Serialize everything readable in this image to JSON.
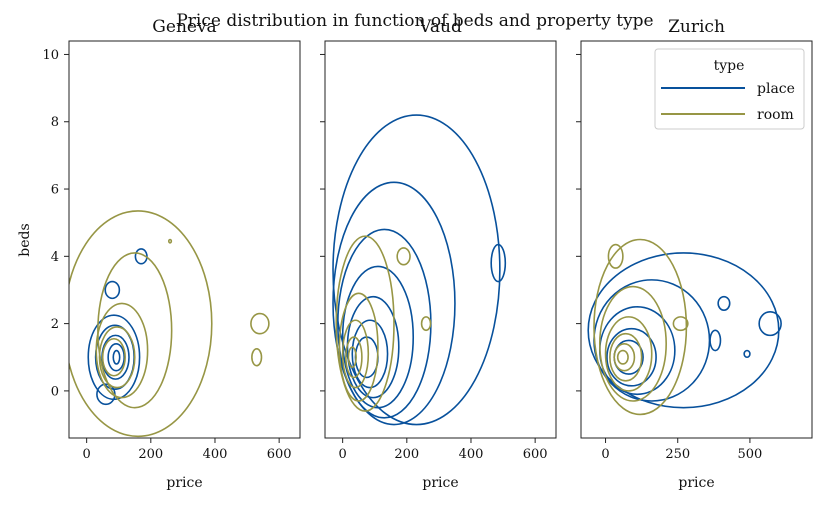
{
  "chart_data": {
    "type": "kde-contour",
    "title": "Price distribution in function of beds and property type",
    "ylabel": "beds",
    "shared_y": {
      "ylim": [
        -1.4,
        10.4
      ],
      "ticks": [
        0,
        2,
        4,
        6,
        8,
        10
      ]
    },
    "legend": {
      "title": "type",
      "placement": "top-right",
      "entries": [
        "place",
        "room"
      ]
    },
    "series_colors": {
      "place": "#08519c",
      "room": "#979645"
    },
    "panels": [
      {
        "title": "Geneva",
        "xlabel": "price",
        "xlim": [
          -55,
          665
        ],
        "xticks": [
          0,
          200,
          400,
          600
        ],
        "series": [
          {
            "name": "place",
            "contours": [
              {
                "cx": 85,
                "cy": 1.0,
                "rx": 80,
                "ry": 1.25
              },
              {
                "cx": 88,
                "cy": 1.0,
                "rx": 60,
                "ry": 0.95
              },
              {
                "cx": 90,
                "cy": 1.0,
                "rx": 42,
                "ry": 0.65
              },
              {
                "cx": 92,
                "cy": 1.0,
                "rx": 25,
                "ry": 0.4
              },
              {
                "cx": 93,
                "cy": 1.0,
                "rx": 10,
                "ry": 0.2
              },
              {
                "cx": 80,
                "cy": 3.0,
                "rx": 22,
                "ry": 0.25
              },
              {
                "cx": 170,
                "cy": 4.0,
                "rx": 18,
                "ry": 0.22
              },
              {
                "cx": 60,
                "cy": -0.1,
                "rx": 28,
                "ry": 0.3
              }
            ]
          },
          {
            "name": "room",
            "contours": [
              {
                "cx": 160,
                "cy": 2.0,
                "rx": 230,
                "ry": 3.35
              },
              {
                "cx": 150,
                "cy": 1.8,
                "rx": 115,
                "ry": 2.3
              },
              {
                "cx": 110,
                "cy": 1.2,
                "rx": 80,
                "ry": 1.4
              },
              {
                "cx": 95,
                "cy": 1.0,
                "rx": 55,
                "ry": 0.9
              },
              {
                "cx": 85,
                "cy": 1.0,
                "rx": 35,
                "ry": 0.55
              },
              {
                "cx": 540,
                "cy": 2.0,
                "rx": 28,
                "ry": 0.3
              },
              {
                "cx": 530,
                "cy": 1.0,
                "rx": 15,
                "ry": 0.25
              },
              {
                "cx": 260,
                "cy": 4.45,
                "rx": 4,
                "ry": 0.05
              }
            ]
          }
        ]
      },
      {
        "title": "Vaud",
        "xlabel": "price",
        "xlim": [
          -55,
          665
        ],
        "xticks": [
          0,
          200,
          400,
          600
        ],
        "series": [
          {
            "name": "place",
            "contours": [
              {
                "cx": 230,
                "cy": 3.6,
                "rx": 260,
                "ry": 4.6
              },
              {
                "cx": 160,
                "cy": 2.6,
                "rx": 190,
                "ry": 3.6
              },
              {
                "cx": 130,
                "cy": 2.0,
                "rx": 145,
                "ry": 2.8
              },
              {
                "cx": 110,
                "cy": 1.6,
                "rx": 110,
                "ry": 2.1
              },
              {
                "cx": 95,
                "cy": 1.3,
                "rx": 80,
                "ry": 1.5
              },
              {
                "cx": 85,
                "cy": 1.1,
                "rx": 55,
                "ry": 1.0
              },
              {
                "cx": 75,
                "cy": 1.0,
                "rx": 35,
                "ry": 0.6
              },
              {
                "cx": 485,
                "cy": 3.8,
                "rx": 22,
                "ry": 0.55
              }
            ]
          },
          {
            "name": "room",
            "contours": [
              {
                "cx": 70,
                "cy": 2.0,
                "rx": 90,
                "ry": 2.6
              },
              {
                "cx": 50,
                "cy": 1.3,
                "rx": 60,
                "ry": 1.6
              },
              {
                "cx": 40,
                "cy": 1.1,
                "rx": 40,
                "ry": 1.0
              },
              {
                "cx": 35,
                "cy": 1.0,
                "rx": 25,
                "ry": 0.6
              },
              {
                "cx": 30,
                "cy": 1.0,
                "rx": 12,
                "ry": 0.3
              },
              {
                "cx": 260,
                "cy": 2.0,
                "rx": 14,
                "ry": 0.2
              },
              {
                "cx": 190,
                "cy": 4.0,
                "rx": 20,
                "ry": 0.25
              }
            ]
          }
        ]
      },
      {
        "title": "Zurich",
        "xlabel": "price",
        "xlim": [
          -85,
          715
        ],
        "xticks": [
          0,
          250,
          500
        ],
        "series": [
          {
            "name": "place",
            "contours": [
              {
                "cx": 270,
                "cy": 1.8,
                "rx": 330,
                "ry": 2.3
              },
              {
                "cx": 160,
                "cy": 1.5,
                "rx": 200,
                "ry": 1.8
              },
              {
                "cx": 110,
                "cy": 1.2,
                "rx": 130,
                "ry": 1.3
              },
              {
                "cx": 90,
                "cy": 1.0,
                "rx": 85,
                "ry": 0.85
              },
              {
                "cx": 80,
                "cy": 1.0,
                "rx": 50,
                "ry": 0.5
              },
              {
                "cx": 570,
                "cy": 2.0,
                "rx": 38,
                "ry": 0.35
              },
              {
                "cx": 410,
                "cy": 2.6,
                "rx": 20,
                "ry": 0.2
              },
              {
                "cx": 380,
                "cy": 1.5,
                "rx": 18,
                "ry": 0.3
              },
              {
                "cx": 490,
                "cy": 1.1,
                "rx": 10,
                "ry": 0.1
              }
            ]
          },
          {
            "name": "room",
            "contours": [
              {
                "cx": 120,
                "cy": 1.9,
                "rx": 160,
                "ry": 2.6
              },
              {
                "cx": 95,
                "cy": 1.4,
                "rx": 115,
                "ry": 1.7
              },
              {
                "cx": 80,
                "cy": 1.1,
                "rx": 80,
                "ry": 1.1
              },
              {
                "cx": 70,
                "cy": 1.0,
                "rx": 55,
                "ry": 0.7
              },
              {
                "cx": 65,
                "cy": 1.0,
                "rx": 35,
                "ry": 0.4
              },
              {
                "cx": 60,
                "cy": 1.0,
                "rx": 18,
                "ry": 0.2
              },
              {
                "cx": 35,
                "cy": 4.0,
                "rx": 25,
                "ry": 0.35
              },
              {
                "cx": 260,
                "cy": 2.0,
                "rx": 25,
                "ry": 0.2
              }
            ]
          }
        ]
      }
    ]
  }
}
